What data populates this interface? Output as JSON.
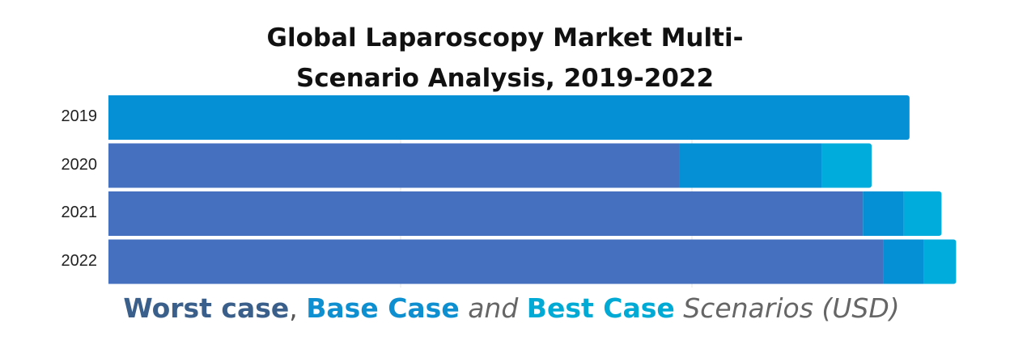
{
  "title_line1": "Global Laparoscopy Market Multi-",
  "title_line2": "Scenario Analysis, 2019-2022",
  "legend": {
    "worst": "Worst case",
    "sep1": ", ",
    "base": "Base Case",
    "sep2": " and ",
    "best": "Best Case",
    "tail": " Scenarios (USD)"
  },
  "colors": {
    "worst": "#4570bf",
    "base": "#0590d6",
    "best": "#00acdc"
  },
  "chart_data": {
    "type": "bar",
    "orientation": "horizontal",
    "stacked": true,
    "categories": [
      "2019",
      "2020",
      "2021",
      "2022"
    ],
    "series": [
      {
        "name": "Worst case",
        "values": [
          0,
          98,
          129.5,
          133
        ]
      },
      {
        "name": "Base Case",
        "values": [
          137.5,
          24.5,
          7,
          7
        ]
      },
      {
        "name": "Best Case",
        "values": [
          0,
          8.5,
          6.5,
          5.5
        ]
      }
    ],
    "xlim": [
      0,
      146
    ],
    "grid": true
  }
}
